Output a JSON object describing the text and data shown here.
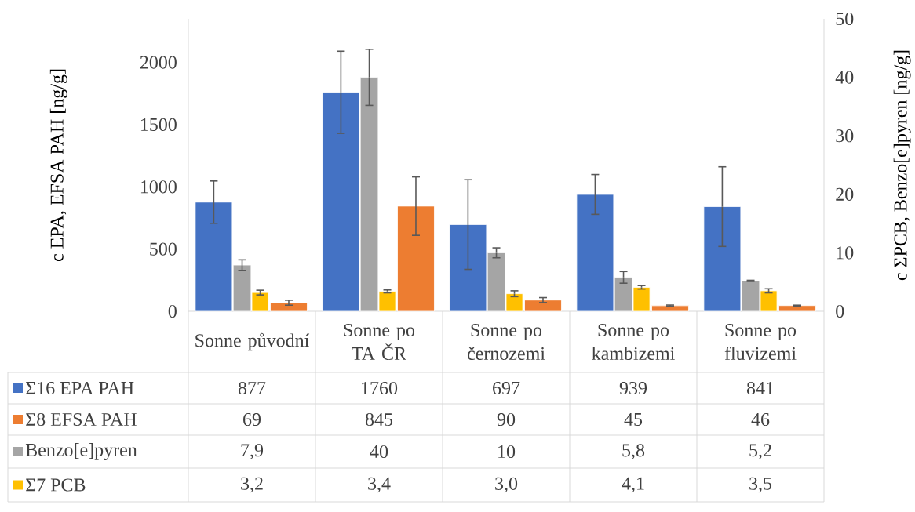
{
  "chart_data": {
    "type": "bar",
    "categories": [
      "Sonne původní",
      "Sonne po TA ČR",
      "Sonne po černozemi",
      "Sonne po kambizemi",
      "Sonne po fluvizemi"
    ],
    "ylabel": "c EPA, EFSA PAH [ng/g]",
    "y2label": "c ΣPCB, Benzo[e]pyren [ng/g]",
    "ylim": [
      0,
      2350
    ],
    "yticks": [
      0,
      500,
      1000,
      1500,
      2000
    ],
    "y2lim": [
      0,
      50
    ],
    "y2ticks": [
      0,
      10,
      20,
      30,
      40,
      50
    ],
    "legend": "bottom",
    "series": [
      {
        "name": "Σ16 EPA PAH",
        "color": "#4472c4",
        "values": [
          877,
          1760,
          697,
          939,
          841
        ],
        "errors": [
          170,
          330,
          360,
          160,
          320
        ],
        "value_labels": [
          "877",
          "1760",
          "697",
          "939",
          "841"
        ]
      },
      {
        "name": "Σ8 EFSA PAH",
        "color": "#ed7d31",
        "values": [
          69,
          845,
          90,
          45,
          46
        ],
        "errors": [
          20,
          235,
          20,
          5,
          3
        ],
        "value_labels": [
          "69",
          "845",
          "90",
          "45",
          "46"
        ]
      },
      {
        "name": "Benzo[e]pyren",
        "color": "#a5a5a5",
        "axis": "y2",
        "values": [
          7.9,
          40,
          10,
          5.8,
          5.2
        ],
        "errors": [
          0.9,
          4.8,
          0.85,
          1.0,
          0.1
        ],
        "value_labels": [
          "7,9",
          "40",
          "10",
          "5,8",
          "5,2"
        ]
      },
      {
        "name": "Σ7 PCB",
        "color": "#ffc000",
        "axis": "y2",
        "values": [
          3.2,
          3.4,
          3.0,
          4.1,
          3.5
        ],
        "errors": [
          0.4,
          0.25,
          0.5,
          0.3,
          0.35
        ],
        "value_labels": [
          "3,2",
          "3,4",
          "3,0",
          "4,1",
          "3,5"
        ]
      }
    ]
  }
}
